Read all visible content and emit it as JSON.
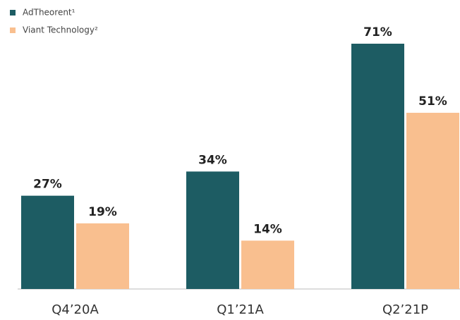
{
  "chart_data": {
    "type": "bar",
    "categories": [
      "Q4’20A",
      "Q1’21A",
      "Q2’21P"
    ],
    "series": [
      {
        "name": "AdTheorent¹",
        "color": "#1d5c63",
        "values": [
          27,
          34,
          71
        ],
        "value_labels": [
          "27%",
          "34%",
          "71%"
        ]
      },
      {
        "name": "Viant Technology²",
        "color": "#f9bf8f",
        "values": [
          19,
          14,
          51
        ],
        "value_labels": [
          "19%",
          "14%",
          "51%"
        ]
      }
    ],
    "legend": "top-left"
  }
}
